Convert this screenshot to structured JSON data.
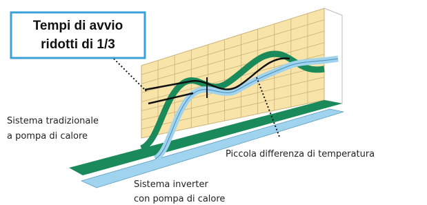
{
  "callout": {
    "lines": [
      "Tempi di avvio",
      "ridotti di 1/3"
    ]
  },
  "labels": {
    "traditional": [
      "Sistema tradizionale",
      "a pompa di calore"
    ],
    "difference": "Piccola differenza di temperatura",
    "inverter": [
      "Sistema inverter",
      "con pompa di calore"
    ]
  }
}
